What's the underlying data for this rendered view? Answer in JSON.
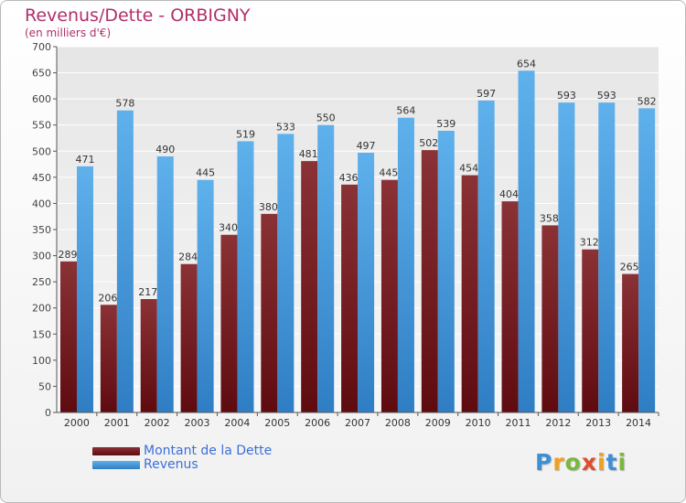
{
  "title": "Revenus/Dette - ORBIGNY",
  "subtitle": "(en milliers d'€)",
  "colors": {
    "debt_dark": "#5e0b10",
    "debt_light": "#8a3236",
    "revenue_dark": "#2f7ec4",
    "revenue_light": "#5fb1ec",
    "title": "#b0306a",
    "legend_text": "#3c6fd8"
  },
  "chart_data": {
    "type": "bar",
    "title": "Revenus/Dette - ORBIGNY",
    "subtitle": "(en milliers d'€)",
    "categories": [
      "2000",
      "2001",
      "2002",
      "2003",
      "2004",
      "2005",
      "2006",
      "2007",
      "2008",
      "2009",
      "2010",
      "2011",
      "2012",
      "2013",
      "2014"
    ],
    "series": [
      {
        "name": "Montant de la Dette",
        "values": [
          289,
          206,
          217,
          284,
          340,
          380,
          481,
          436,
          445,
          502,
          454,
          404,
          358,
          312,
          265
        ]
      },
      {
        "name": "Revenus",
        "values": [
          471,
          578,
          490,
          445,
          519,
          533,
          550,
          497,
          564,
          539,
          597,
          654,
          593,
          593,
          582
        ]
      }
    ],
    "ylim": [
      0,
      700
    ],
    "yticks": [
      0,
      50,
      100,
      150,
      200,
      250,
      300,
      350,
      400,
      450,
      500,
      550,
      600,
      650,
      700
    ],
    "grid": true,
    "legend": "bottom-left"
  },
  "legend": {
    "items": [
      {
        "label": "Montant de la Dette"
      },
      {
        "label": "Revenus"
      }
    ]
  },
  "logo": {
    "letters": [
      "P",
      "r",
      "o",
      "x",
      "i",
      "t",
      "i"
    ]
  }
}
